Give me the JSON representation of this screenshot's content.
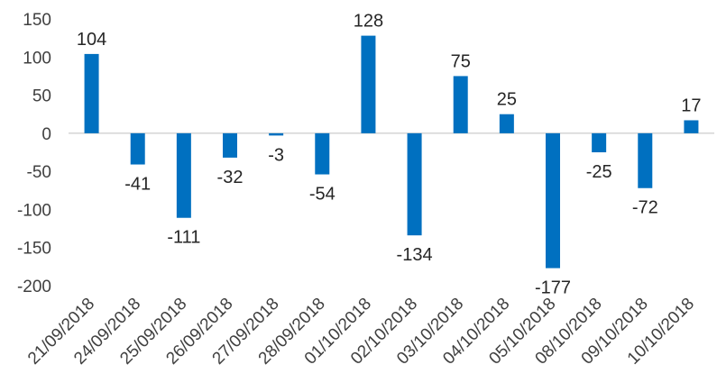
{
  "chart_data": {
    "type": "bar",
    "title": "",
    "xlabel": "",
    "ylabel": "",
    "ylim": [
      -200,
      150
    ],
    "yticks": [
      150,
      100,
      50,
      0,
      -50,
      -100,
      -150,
      -200
    ],
    "grid": false,
    "legend": "none",
    "bar_color": "#0070C0",
    "categories": [
      "21/09/2018",
      "24/09/2018",
      "25/09/2018",
      "26/09/2018",
      "27/09/2018",
      "28/09/2018",
      "01/10/2018",
      "02/10/2018",
      "03/10/2018",
      "04/10/2018",
      "05/10/2018",
      "08/10/2018",
      "09/10/2018",
      "10/10/2018"
    ],
    "values": [
      104,
      -41,
      -111,
      -32,
      -3,
      -54,
      128,
      -134,
      75,
      25,
      -177,
      -25,
      -72,
      17
    ],
    "data_labels": [
      "104",
      "-41",
      "-111",
      "-32",
      "-3",
      "-54",
      "128",
      "-134",
      "75",
      "25",
      "-177",
      "-25",
      "-72",
      "17"
    ]
  }
}
